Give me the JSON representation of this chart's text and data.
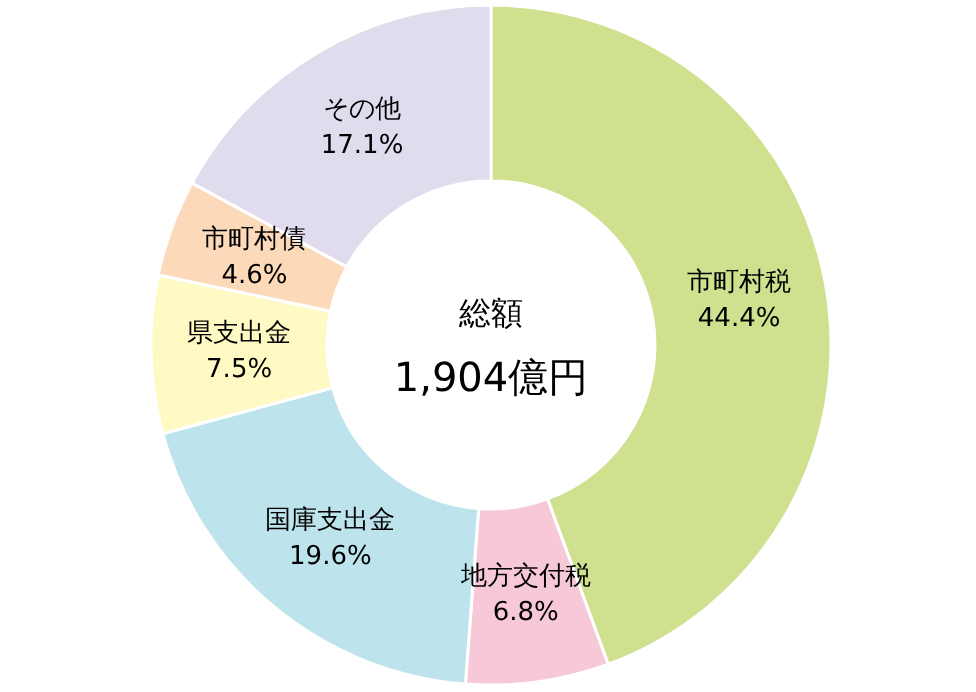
{
  "chart_data": {
    "type": "donut",
    "categories": [
      "市町村税",
      "地方交付税",
      "国庫支出金",
      "県支出金",
      "市町村債",
      "その他"
    ],
    "values": [
      44.4,
      6.8,
      19.6,
      7.5,
      4.6,
      17.1
    ],
    "value_labels": [
      "44.4%",
      "6.8%",
      "19.6%",
      "7.5%",
      "4.6%",
      "17.1%"
    ],
    "colors": [
      "#cfe08f",
      "#f6c8d8",
      "#bde3ec",
      "#fff9c4",
      "#fbd9b9",
      "#e0dcee"
    ],
    "annotations": [
      "総額",
      "1,904億円"
    ],
    "legend": false
  }
}
